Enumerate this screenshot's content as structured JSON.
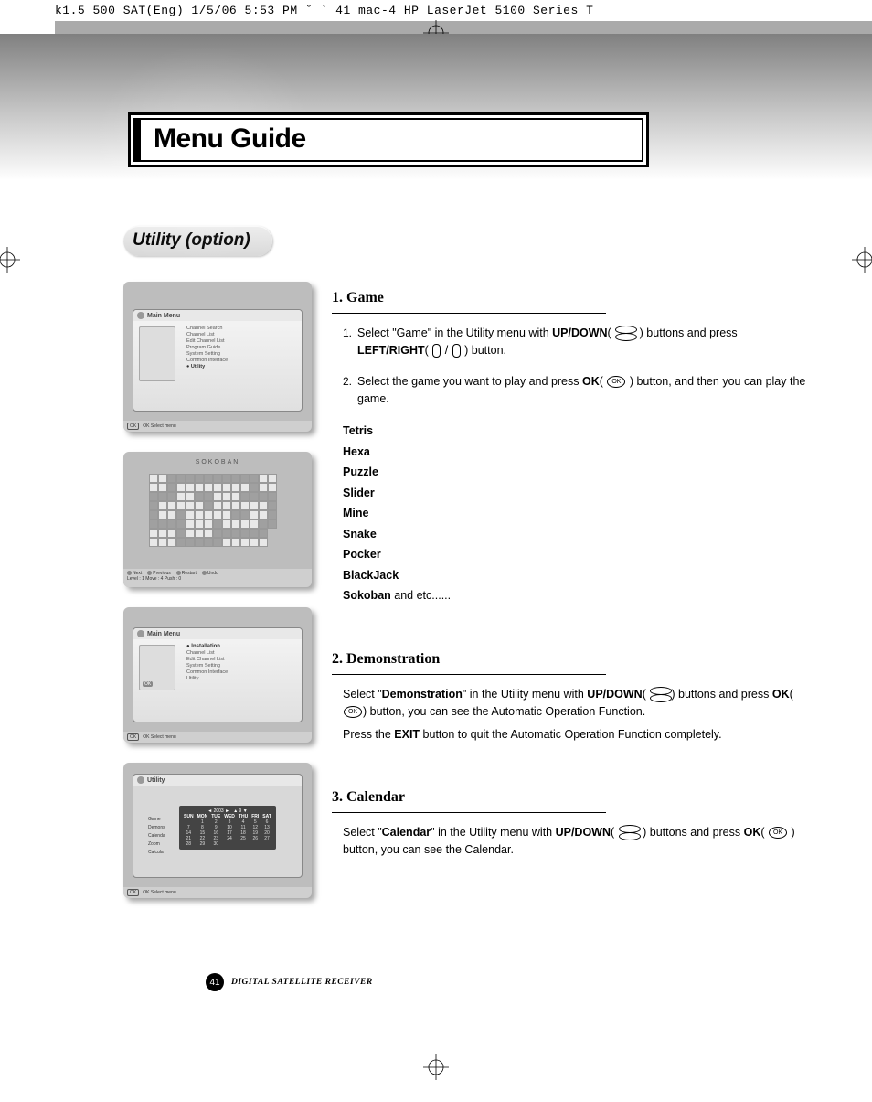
{
  "meta_header": "k1.5 500 SAT(Eng)  1/5/06 5:53 PM  ˘   `  41   mac-4 HP LaserJet 5100 Series  T",
  "page_title": "Menu Guide",
  "subtitle": "Utility (option)",
  "sections": {
    "game": {
      "heading": "1. Game",
      "step1_num": "1.",
      "step1_a": "Select \"Game\" in the Utility menu with ",
      "step1_b": "UP/DOWN",
      "step1_c": "( ",
      "step1_d": " ) buttons and press ",
      "step1_e": "LEFT/RIGHT",
      "step1_f": "( ",
      "step1_g": " / ",
      "step1_h": " ) button.",
      "step2_num": "2.",
      "step2_a": "Select the game you want to play and press ",
      "step2_b": "OK",
      "step2_c": "( ",
      "step2_d": " ) button, and then you can play the game.",
      "games": [
        "Tetris",
        "Hexa",
        "Puzzle",
        "Slider",
        "Mine",
        "Snake",
        "Pocker",
        "BlackJack"
      ],
      "games_last_bold": "Sokoban",
      "games_last_tail": " and etc......"
    },
    "demo": {
      "heading": "2. Demonstration",
      "p1_a": "Select \"",
      "p1_b": "Demonstration",
      "p1_c": "\" in the Utility menu with ",
      "p1_d": "UP/DOWN",
      "p1_e": "( ",
      "p1_f": ") buttons and press ",
      "p1_g": "OK",
      "p1_h": "(",
      "p1_i": ") button, you can see the Automatic Operation Function.",
      "p2_a": "Press the ",
      "p2_b": "EXIT",
      "p2_c": " button to quit the Automatic Operation Function completely."
    },
    "cal": {
      "heading": "3. Calendar",
      "p1_a": "Select \"",
      "p1_b": "Calendar",
      "p1_c": "\" in the Utility menu with ",
      "p1_d": "UP/DOWN",
      "p1_e": "( ",
      "p1_f": " ) buttons and press ",
      "p1_g": "OK",
      "p1_h": "( ",
      "p1_i": " ) button, you can see the Calendar."
    }
  },
  "screenshots": {
    "s1": {
      "title": "Main Menu",
      "items": [
        "Channel Search",
        "Channel List",
        "Edit Channel List",
        "Program Guide",
        "System Setting",
        "Common Interface",
        "Utility"
      ],
      "help": "OK  Select menu"
    },
    "s2": {
      "title": "SOKOBAN",
      "help_items": [
        "Next",
        "Previous",
        "Restart",
        "Undo"
      ],
      "status": "Level : 1        Move : 4        Push : 0"
    },
    "s3": {
      "title": "Main Menu",
      "highlight": "Installation",
      "items": [
        "Channel List",
        "Edit Channel List",
        "System Setting",
        "Common Interface",
        "Utility"
      ],
      "ok": "OK",
      "help": "OK  Select menu"
    },
    "s4": {
      "title": "Utility",
      "year": "2003",
      "month": "9",
      "dow": [
        "SUN",
        "MON",
        "TUE",
        "WED",
        "THU",
        "FRI",
        "SAT"
      ],
      "rows": [
        [
          "",
          "1",
          "2",
          "3",
          "4",
          "5",
          "6"
        ],
        [
          "7",
          "8",
          "9",
          "10",
          "11",
          "12",
          "13"
        ],
        [
          "14",
          "15",
          "16",
          "17",
          "18",
          "19",
          "20"
        ],
        [
          "21",
          "22",
          "23",
          "24",
          "25",
          "26",
          "27"
        ],
        [
          "28",
          "29",
          "30",
          "",
          "",
          "",
          ""
        ]
      ],
      "side": [
        "Game",
        "Demons",
        "Calenda",
        "Zoom",
        "Calcula"
      ],
      "help": "OK  Select menu"
    }
  },
  "footer": {
    "page": "41",
    "label": "DIGITAL SATELLITE RECEIVER"
  },
  "ok_label": "OK",
  "colors": {
    "title_border": "#000000",
    "pill_bg_top": "#ededed",
    "pill_bg_bottom": "#d8d8d8",
    "hero_top": "#808080",
    "hero_bottom": "#ffffff",
    "screenshot_bg": "#bdbdbd",
    "shadow": "rgba(0,0,0,0.35)",
    "page_circle": "#000000"
  }
}
